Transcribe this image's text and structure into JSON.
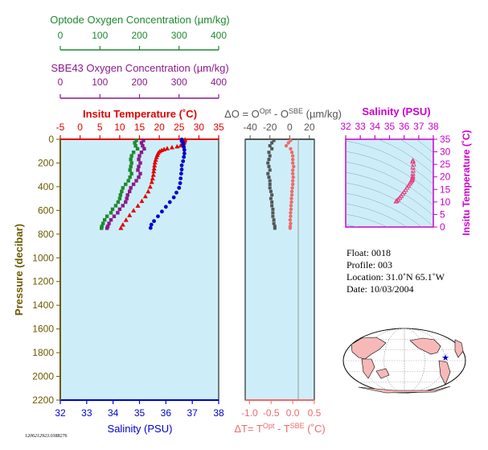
{
  "colors": {
    "optode": "#1f8a2e",
    "sbe": "#8b1a8b",
    "temperature": "#e00000",
    "salinity": "#0000cc",
    "pressure": "#6b5a00",
    "delta": "#f06a6a",
    "delta_o": "#555555",
    "panel_fill": "#cdeef8",
    "ts_axis": "#cc00cc",
    "ts_points": "#e8387a",
    "land": "#f7b8b8",
    "ocean": "#ffffff",
    "float_marker": "#0000cc"
  },
  "axes": {
    "optode": {
      "title": "Optode Oxygen Concentration (µm/kg)",
      "ticks": [
        "0",
        "100",
        "200",
        "300",
        "400"
      ]
    },
    "sbe43": {
      "title": "SBE43 Oxygen Concentration (µm/kg)",
      "ticks": [
        "0",
        "100",
        "200",
        "300",
        "400"
      ]
    },
    "temperature": {
      "title": "Insitu Temperature (˚C)",
      "ticks": [
        "-5",
        "0",
        "5",
        "10",
        "15",
        "20",
        "25",
        "30",
        "35"
      ]
    },
    "salinity": {
      "title": "Salinity (PSU)",
      "ticks": [
        "32",
        "33",
        "34",
        "35",
        "36",
        "37",
        "38"
      ]
    },
    "pressure": {
      "title": "Pressure (decibar)",
      "ticks": [
        "0",
        "200",
        "400",
        "600",
        "800",
        "1000",
        "1200",
        "1400",
        "1600",
        "1800",
        "2000",
        "2200"
      ]
    },
    "delta_o": {
      "title_pre": "ΔO = O",
      "sup1": "Opt",
      "title_mid": " - O",
      "sup2": "SBE",
      "title_post": " (µm/kg)",
      "ticks": [
        "-40",
        "-20",
        "0",
        "20"
      ]
    },
    "delta_t": {
      "title_pre": "ΔT= T",
      "sup1": "Opt",
      "title_mid": " - T",
      "sup2": "SBE",
      "title_post": " (˚C)",
      "ticks": [
        "-1.0",
        "-0.5",
        "0.0",
        "0.5"
      ]
    },
    "ts_salinity": {
      "title": "Salinity (PSU)",
      "ticks": [
        "32",
        "33",
        "34",
        "35",
        "36",
        "37",
        "38"
      ]
    },
    "ts_temperature": {
      "title": "Insitu Temperature (˚C)",
      "ticks": [
        "0",
        "5",
        "10",
        "15",
        "20",
        "25",
        "30",
        "35"
      ]
    }
  },
  "info": {
    "float": "Float:  0018",
    "profile": "Profile:  003",
    "location": "Location:  31.0˚N  65.1˚W",
    "date": "Date:  10/03/2004"
  },
  "footer_id": "1206212923.0388276",
  "map": {
    "float_lat": 31.0,
    "float_lon": -65.1
  },
  "chart_data": [
    {
      "type": "scatter",
      "title": "",
      "ylabel": "Pressure (decibar)",
      "ylim": [
        2200,
        0
      ],
      "series": [
        {
          "name": "Insitu Temperature (˚C)",
          "xlim": [
            -5,
            35
          ],
          "points": [
            [
              26.5,
              2
            ],
            [
              26.4,
              12
            ],
            [
              26.3,
              22
            ],
            [
              26.2,
              32
            ],
            [
              26.0,
              42
            ],
            [
              25.4,
              52
            ],
            [
              24.5,
              60
            ],
            [
              23.2,
              68
            ],
            [
              22.0,
              76
            ],
            [
              21.2,
              84
            ],
            [
              20.6,
              92
            ],
            [
              20.1,
              102
            ],
            [
              19.7,
              116
            ],
            [
              19.5,
              132
            ],
            [
              19.3,
              150
            ],
            [
              19.1,
              172
            ],
            [
              18.9,
              195
            ],
            [
              18.8,
              220
            ],
            [
              18.7,
              245
            ],
            [
              18.6,
              270
            ],
            [
              18.5,
              300
            ],
            [
              18.3,
              330
            ],
            [
              18.1,
              360
            ],
            [
              17.7,
              400
            ],
            [
              17.2,
              440
            ],
            [
              16.5,
              480
            ],
            [
              15.6,
              520
            ],
            [
              14.6,
              560
            ],
            [
              13.5,
              600
            ],
            [
              12.5,
              640
            ],
            [
              11.6,
              680
            ],
            [
              10.8,
              720
            ],
            [
              10.3,
              748
            ]
          ]
        },
        {
          "name": "Salinity (PSU)",
          "xlim": [
            32,
            38
          ],
          "points": [
            [
              36.6,
              2
            ],
            [
              36.6,
              15
            ],
            [
              36.65,
              28
            ],
            [
              36.65,
              45
            ],
            [
              36.68,
              65
            ],
            [
              36.7,
              90
            ],
            [
              36.7,
              120
            ],
            [
              36.68,
              150
            ],
            [
              36.65,
              185
            ],
            [
              36.6,
              220
            ],
            [
              36.6,
              255
            ],
            [
              36.58,
              290
            ],
            [
              36.56,
              330
            ],
            [
              36.54,
              370
            ],
            [
              36.5,
              410
            ],
            [
              36.4,
              450
            ],
            [
              36.3,
              490
            ],
            [
              36.15,
              530
            ],
            [
              36.0,
              570
            ],
            [
              35.85,
              610
            ],
            [
              35.7,
              650
            ],
            [
              35.55,
              690
            ],
            [
              35.45,
              720
            ],
            [
              35.42,
              748
            ]
          ]
        },
        {
          "name": "Optode Oxygen Concentration (µm/kg)",
          "xlim": [
            0,
            400
          ],
          "points": [
            [
              192,
              10
            ],
            [
              188,
              30
            ],
            [
              190,
              55
            ],
            [
              195,
              80
            ],
            [
              185,
              110
            ],
            [
              180,
              140
            ],
            [
              178,
              170
            ],
            [
              180,
              200
            ],
            [
              178,
              230
            ],
            [
              176,
              260
            ],
            [
              180,
              290
            ],
            [
              176,
              320
            ],
            [
              172,
              350
            ],
            [
              165,
              380
            ],
            [
              158,
              410
            ],
            [
              155,
              440
            ],
            [
              152,
              470
            ],
            [
              150,
              500
            ],
            [
              146,
              530
            ],
            [
              140,
              560
            ],
            [
              132,
              590
            ],
            [
              128,
              620
            ],
            [
              118,
              650
            ],
            [
              112,
              680
            ],
            [
              108,
              710
            ],
            [
              105,
              735
            ],
            [
              104,
              750
            ]
          ]
        },
        {
          "name": "SBE43 Oxygen Concentration (µm/kg)",
          "xlim": [
            0,
            400
          ],
          "points": [
            [
              210,
              10
            ],
            [
              205,
              30
            ],
            [
              208,
              55
            ],
            [
              212,
              80
            ],
            [
              205,
              110
            ],
            [
              200,
              140
            ],
            [
              198,
              170
            ],
            [
              202,
              200
            ],
            [
              198,
              230
            ],
            [
              196,
              260
            ],
            [
              202,
              290
            ],
            [
              198,
              320
            ],
            [
              192,
              350
            ],
            [
              185,
              380
            ],
            [
              178,
              410
            ],
            [
              175,
              440
            ],
            [
              170,
              470
            ],
            [
              168,
              500
            ],
            [
              165,
              530
            ],
            [
              158,
              560
            ],
            [
              150,
              590
            ],
            [
              145,
              620
            ],
            [
              136,
              650
            ],
            [
              128,
              680
            ],
            [
              123,
              710
            ],
            [
              120,
              735
            ],
            [
              118,
              750
            ]
          ]
        }
      ]
    },
    {
      "type": "scatter",
      "title": "",
      "ylim": [
        2200,
        0
      ],
      "series": [
        {
          "name": "ΔO (µm/kg)",
          "xlim": [
            -45,
            25
          ],
          "points": [
            [
              -16,
              10
            ],
            [
              -18,
              30
            ],
            [
              -20,
              55
            ],
            [
              -18,
              80
            ],
            [
              -21,
              110
            ],
            [
              -20,
              140
            ],
            [
              -21,
              170
            ],
            [
              -22,
              200
            ],
            [
              -21,
              230
            ],
            [
              -20,
              260
            ],
            [
              -22,
              290
            ],
            [
              -21,
              320
            ],
            [
              -20,
              350
            ],
            [
              -20,
              380
            ],
            [
              -20,
              410
            ],
            [
              -19,
              440
            ],
            [
              -18,
              470
            ],
            [
              -19,
              500
            ],
            [
              -18,
              530
            ],
            [
              -18,
              560
            ],
            [
              -17,
              590
            ],
            [
              -17,
              620
            ],
            [
              -17,
              650
            ],
            [
              -16,
              680
            ],
            [
              -16,
              710
            ],
            [
              -15,
              735
            ],
            [
              -15,
              750
            ]
          ]
        },
        {
          "name": "ΔT (˚C)",
          "xlim": [
            -1.1,
            0.5
          ],
          "points": [
            [
              -0.05,
              10
            ],
            [
              -0.1,
              30
            ],
            [
              -0.15,
              55
            ],
            [
              -0.05,
              80
            ],
            [
              -0.02,
              110
            ],
            [
              0.0,
              140
            ],
            [
              0.0,
              170
            ],
            [
              0.0,
              200
            ],
            [
              0.02,
              230
            ],
            [
              0.0,
              260
            ],
            [
              0.0,
              290
            ],
            [
              0.01,
              320
            ],
            [
              0.0,
              350
            ],
            [
              0.0,
              380
            ],
            [
              -0.01,
              410
            ],
            [
              -0.02,
              440
            ],
            [
              -0.02,
              470
            ],
            [
              -0.03,
              500
            ],
            [
              -0.03,
              530
            ],
            [
              -0.04,
              560
            ],
            [
              -0.04,
              590
            ],
            [
              -0.05,
              620
            ],
            [
              -0.05,
              650
            ],
            [
              -0.06,
              680
            ],
            [
              -0.05,
              710
            ],
            [
              -0.06,
              735
            ],
            [
              -0.06,
              750
            ]
          ]
        }
      ]
    },
    {
      "type": "scatter",
      "title": "",
      "xlabel": "Salinity (PSU)",
      "ylabel": "Insitu Temperature (˚C)",
      "xlim": [
        32,
        38
      ],
      "ylim": [
        0,
        35
      ],
      "points": [
        [
          36.6,
          26.5
        ],
        [
          36.6,
          26.0
        ],
        [
          36.65,
          25.0
        ],
        [
          36.6,
          23.8
        ],
        [
          36.62,
          22.5
        ],
        [
          36.6,
          21.3
        ],
        [
          36.6,
          20.3
        ],
        [
          36.58,
          19.7
        ],
        [
          36.56,
          19.2
        ],
        [
          36.54,
          18.8
        ],
        [
          36.5,
          18.4
        ],
        [
          36.45,
          17.9
        ],
        [
          36.38,
          17.3
        ],
        [
          36.3,
          16.5
        ],
        [
          36.2,
          15.7
        ],
        [
          36.1,
          14.8
        ],
        [
          36.0,
          14.0
        ],
        [
          35.9,
          13.2
        ],
        [
          35.8,
          12.4
        ],
        [
          35.7,
          11.7
        ],
        [
          35.6,
          11.0
        ],
        [
          35.5,
          10.5
        ],
        [
          35.45,
          10.2
        ]
      ]
    }
  ]
}
